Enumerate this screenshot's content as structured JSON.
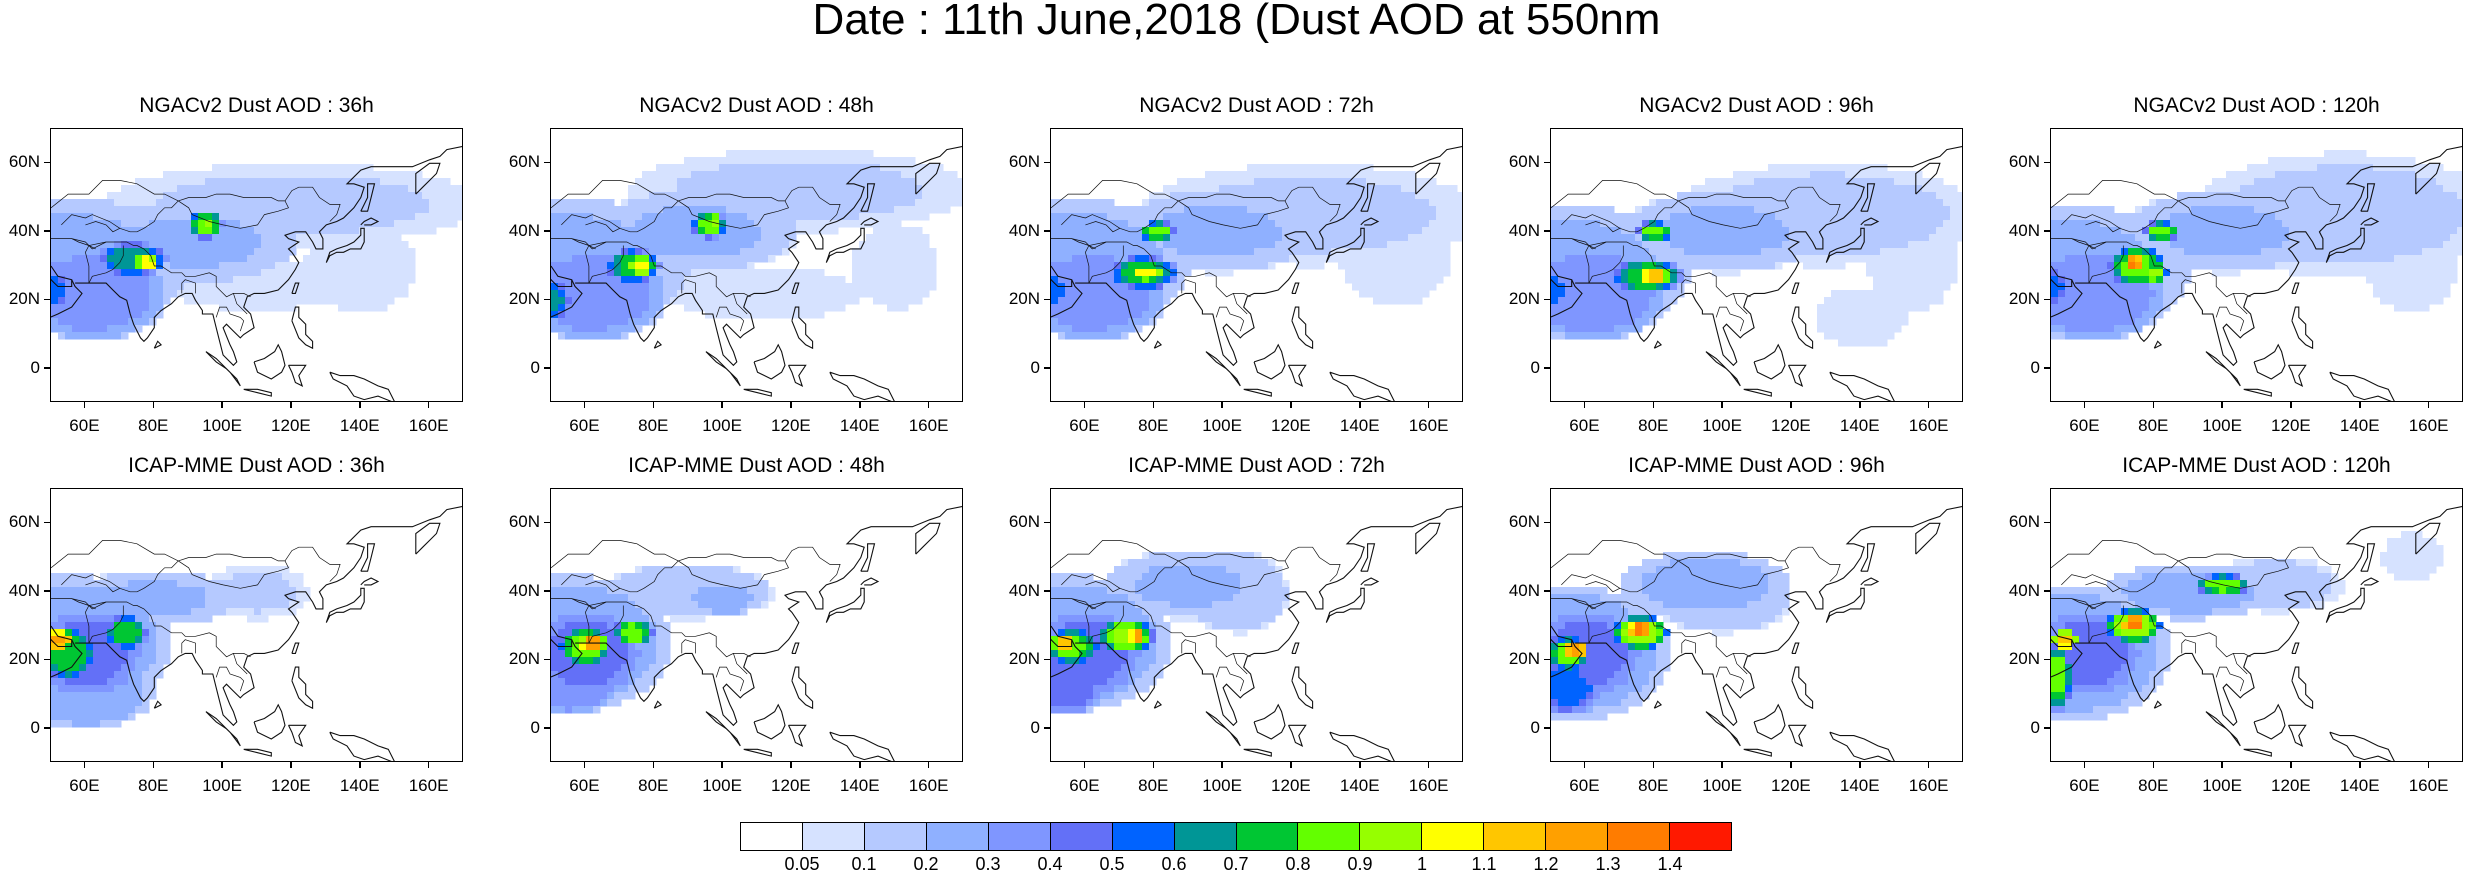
{
  "title": "Date : 11th June,2018 (Dust AOD at 550nm",
  "panels": [
    {
      "title": "NGACv2 Dust AOD : 36h",
      "model": "NGACv2",
      "lead": "36h"
    },
    {
      "title": "NGACv2 Dust AOD : 48h",
      "model": "NGACv2",
      "lead": "48h"
    },
    {
      "title": "NGACv2 Dust AOD : 72h",
      "model": "NGACv2",
      "lead": "72h"
    },
    {
      "title": "NGACv2 Dust AOD : 96h",
      "model": "NGACv2",
      "lead": "96h"
    },
    {
      "title": "NGACv2 Dust AOD : 120h",
      "model": "NGACv2",
      "lead": "120h"
    },
    {
      "title": "ICAP-MME Dust AOD : 36h",
      "model": "ICAP-MME",
      "lead": "36h"
    },
    {
      "title": "ICAP-MME Dust AOD : 48h",
      "model": "ICAP-MME",
      "lead": "48h"
    },
    {
      "title": "ICAP-MME Dust AOD : 72h",
      "model": "ICAP-MME",
      "lead": "72h"
    },
    {
      "title": "ICAP-MME Dust AOD : 96h",
      "model": "ICAP-MME",
      "lead": "96h"
    },
    {
      "title": "ICAP-MME Dust AOD : 120h",
      "model": "ICAP-MME",
      "lead": "120h"
    }
  ],
  "lat_ticks": [
    "60N",
    "40N",
    "20N",
    "0"
  ],
  "lon_ticks": [
    "60E",
    "80E",
    "100E",
    "120E",
    "140E",
    "160E"
  ],
  "lat_values": [
    60,
    40,
    20,
    0
  ],
  "lon_values": [
    60,
    80,
    100,
    120,
    140,
    160
  ],
  "lon_range": [
    50,
    170
  ],
  "lat_range": [
    -10,
    70
  ],
  "colorbar": {
    "levels": [
      "0.05",
      "0.1",
      "0.2",
      "0.3",
      "0.4",
      "0.5",
      "0.6",
      "0.7",
      "0.8",
      "0.9",
      "1",
      "1.1",
      "1.2",
      "1.3",
      "1.4"
    ],
    "colors": [
      "#ffffff",
      "#d6e2ff",
      "#b5c9ff",
      "#8fb0ff",
      "#7f96ff",
      "#6370f7",
      "#0063ff",
      "#009696",
      "#00c633",
      "#63ff00",
      "#96ff00",
      "#ffff00",
      "#ffc600",
      "#ffa000",
      "#ff7c00",
      "#ff1900"
    ]
  }
}
